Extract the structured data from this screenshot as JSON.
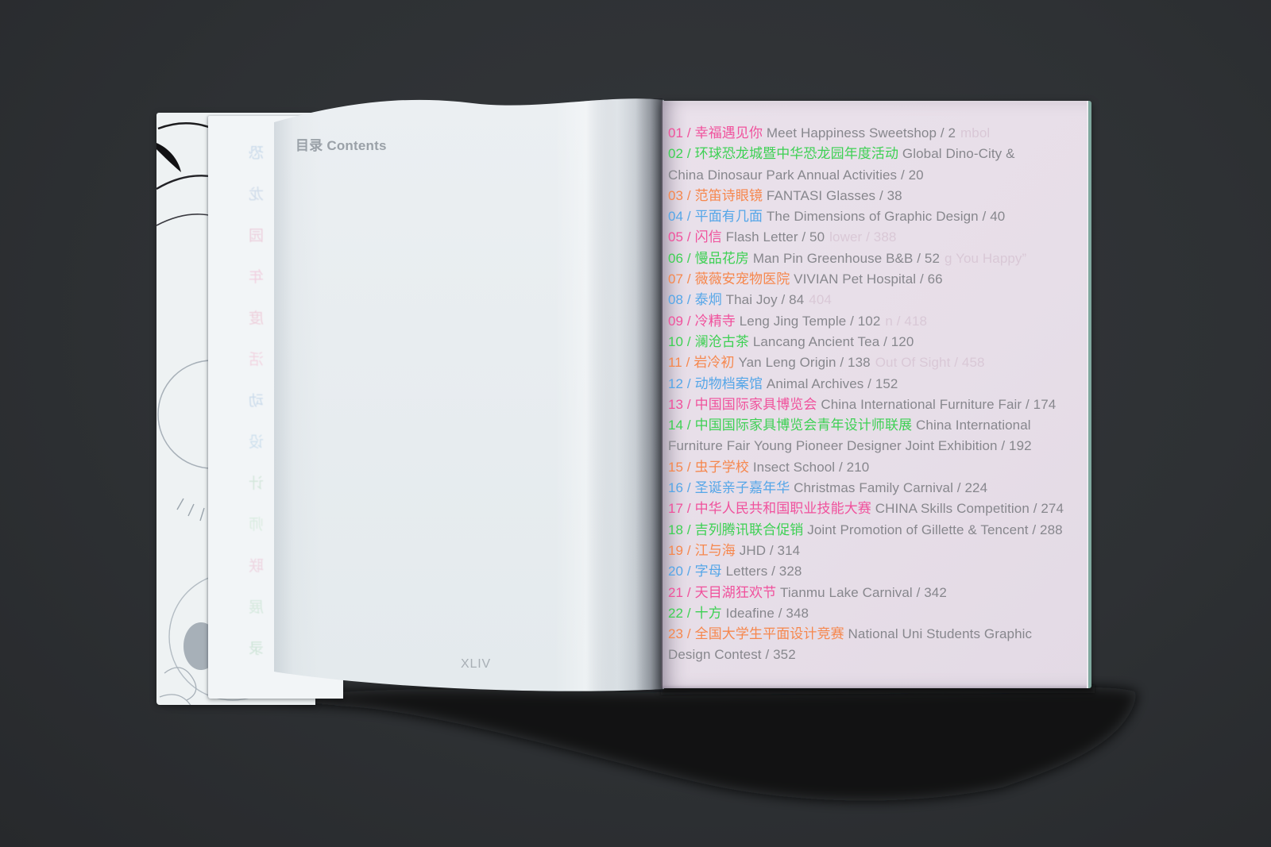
{
  "desk": {
    "background_color": "#2e3134"
  },
  "book": {
    "left_page": {
      "header": {
        "zh": "目录",
        "en": "Contents"
      },
      "folio": "XLIV",
      "ghost_column": [
        {
          "ch": "恐",
          "color": "#8fb3d9"
        },
        {
          "ch": "龙",
          "color": "#9fb8d8"
        },
        {
          "ch": "园",
          "color": "#e39ab8"
        },
        {
          "ch": "年",
          "color": "#ef9ec0"
        },
        {
          "ch": "度",
          "color": "#e89ab5"
        },
        {
          "ch": "活",
          "color": "#f0a6c2"
        },
        {
          "ch": "动",
          "color": "#93b6da"
        },
        {
          "ch": "设",
          "color": "#9cc3e0"
        },
        {
          "ch": "计",
          "color": "#a9d3b4"
        },
        {
          "ch": "师",
          "color": "#b9e0c2"
        },
        {
          "ch": "联",
          "color": "#e8a8c2"
        },
        {
          "ch": "展",
          "color": "#aed8ba"
        },
        {
          "ch": "录",
          "color": "#9fcfae"
        }
      ]
    },
    "right_page": {
      "page_color": "#e7dee8",
      "edge_color": "#7fa89e",
      "palette": {
        "pink": "#f0519c",
        "green": "#3dd053",
        "orange": "#f6874d",
        "blue": "#55a6e8",
        "body": "#87878d",
        "ghost": "#d9c8d6"
      },
      "entries": [
        {
          "num": "01",
          "color": "pink",
          "zh": "幸福遇见你",
          "en": "Meet Happiness Sweetshop",
          "page": "2",
          "ghost": "mbol"
        },
        {
          "num": "02",
          "color": "green",
          "zh": "环球恐龙城暨中华恐龙园年度活动",
          "en": "Global Dino-City &\nChina Dinosaur Park Annual Activities",
          "page": "20"
        },
        {
          "num": "03",
          "color": "orange",
          "zh": "范笛诗眼镜",
          "en": "FANTASI Glasses",
          "page": "38"
        },
        {
          "num": "04",
          "color": "blue",
          "zh": "平面有几面",
          "en": "The Dimensions of Graphic Design",
          "page": "40"
        },
        {
          "num": "05",
          "color": "pink",
          "zh": "闪信",
          "en": "Flash Letter",
          "page": "50",
          "ghost": "lower / 388"
        },
        {
          "num": "06",
          "color": "green",
          "zh": "慢品花房",
          "en": "Man Pin Greenhouse B&B",
          "page": "52",
          "ghost": "g You Happy”"
        },
        {
          "num": "07",
          "color": "orange",
          "zh": "薇薇安宠物医院",
          "en": "VIVIAN Pet Hospital",
          "page": "66"
        },
        {
          "num": "08",
          "color": "blue",
          "zh": "泰炯",
          "en": "Thai Joy",
          "page": "84",
          "ghost": "404"
        },
        {
          "num": "09",
          "color": "pink",
          "zh": "冷精寺",
          "en": "Leng Jing Temple",
          "page": "102",
          "ghost": "n / 418"
        },
        {
          "num": "10",
          "color": "green",
          "zh": "澜沧古茶",
          "en": "Lancang Ancient Tea",
          "page": "120"
        },
        {
          "num": "11",
          "color": "orange",
          "zh": "岩冷初",
          "en": "Yan Leng Origin",
          "page": "138",
          "ghost": "Out Of Sight / 458"
        },
        {
          "num": "12",
          "color": "blue",
          "zh": "动物档案馆",
          "en": "Animal Archives",
          "page": "152"
        },
        {
          "num": "13",
          "color": "pink",
          "zh": "中国国际家具博览会",
          "en": "China International Furniture Fair",
          "page": "174"
        },
        {
          "num": "14",
          "color": "green",
          "zh": "中国国际家具博览会青年设计师联展",
          "en": "China International\nFurniture Fair Young Pioneer Designer Joint Exhibition",
          "page": "192"
        },
        {
          "num": "15",
          "color": "orange",
          "zh": "虫子学校",
          "en": "Insect School",
          "page": "210"
        },
        {
          "num": "16",
          "color": "blue",
          "zh": "圣诞亲子嘉年华",
          "en": "Christmas Family Carnival",
          "page": "224"
        },
        {
          "num": "17",
          "color": "pink",
          "zh": "中华人民共和国职业技能大赛",
          "en": "CHINA Skills Competition",
          "page": "274"
        },
        {
          "num": "18",
          "color": "green",
          "zh": "吉列腾讯联合促销",
          "en": "Joint Promotion of Gillette & Tencent",
          "page": "288"
        },
        {
          "num": "19",
          "color": "orange",
          "zh": "江与海",
          "en": "JHD",
          "page": "314"
        },
        {
          "num": "20",
          "color": "blue",
          "zh": "字母",
          "en": "Letters",
          "page": "328"
        },
        {
          "num": "21",
          "color": "pink",
          "zh": "天目湖狂欢节",
          "en": "Tianmu Lake Carnival",
          "page": "342"
        },
        {
          "num": "22",
          "color": "green",
          "zh": "十方",
          "en": "Ideafine",
          "page": "348"
        },
        {
          "num": "23",
          "color": "orange",
          "zh": "全国大学生平面设计竞赛",
          "en": "National Uni Students Graphic\nDesign Contest",
          "page": "352"
        }
      ]
    }
  }
}
